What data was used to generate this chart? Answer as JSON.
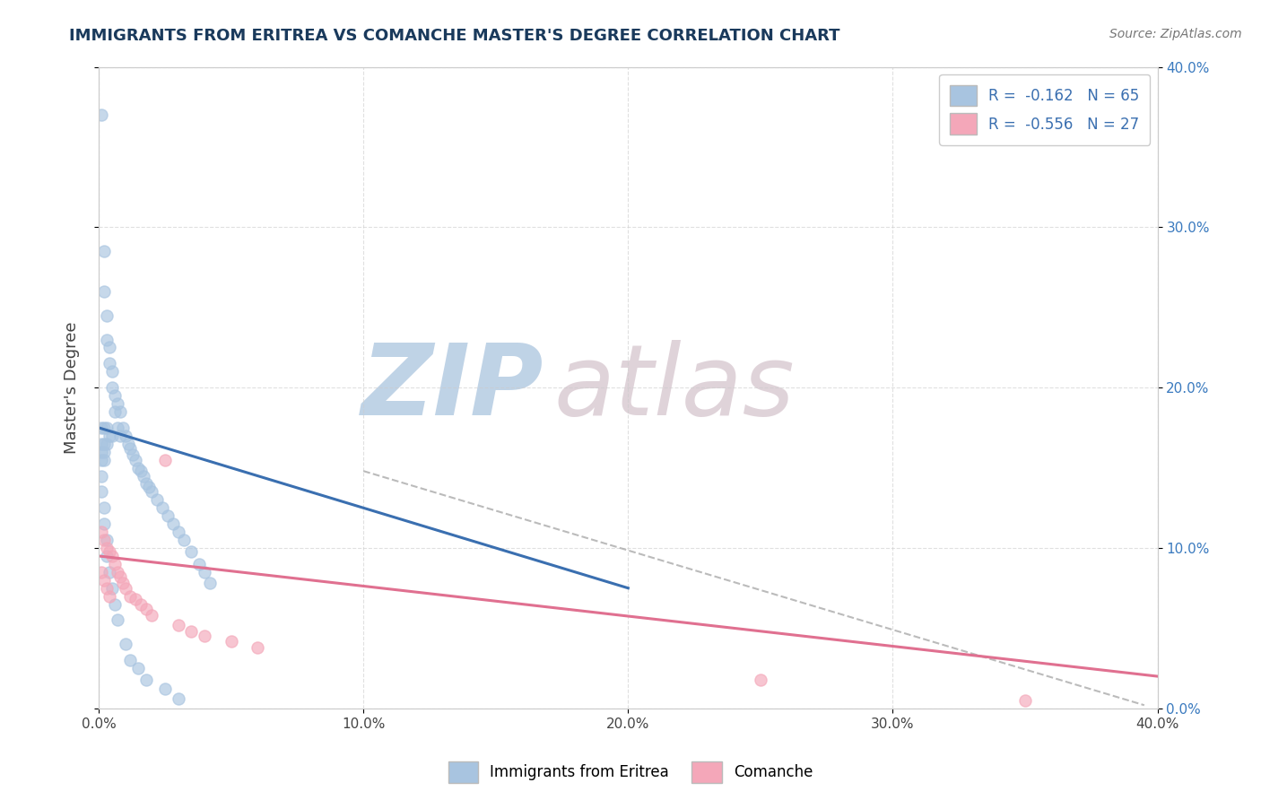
{
  "title": "IMMIGRANTS FROM ERITREA VS COMANCHE MASTER'S DEGREE CORRELATION CHART",
  "source_text": "Source: ZipAtlas.com",
  "ylabel": "Master's Degree",
  "xlim": [
    0.0,
    0.4
  ],
  "ylim": [
    0.0,
    0.4
  ],
  "xtick_labels": [
    "0.0%",
    "10.0%",
    "20.0%",
    "30.0%",
    "40.0%"
  ],
  "xtick_values": [
    0.0,
    0.1,
    0.2,
    0.3,
    0.4
  ],
  "right_ytick_labels": [
    "0.0%",
    "10.0%",
    "20.0%",
    "30.0%",
    "40.0%"
  ],
  "right_ytick_values": [
    0.0,
    0.1,
    0.2,
    0.3,
    0.4
  ],
  "blue_R": -0.162,
  "blue_N": 65,
  "pink_R": -0.556,
  "pink_N": 27,
  "blue_color": "#a8c4e0",
  "pink_color": "#f4a7b9",
  "blue_line_color": "#3a6fb0",
  "pink_line_color": "#e07090",
  "dashed_line_color": "#aaaaaa",
  "title_color": "#1a3a5c",
  "source_color": "#777777",
  "watermark_color": "#c8d8e8",
  "watermark_zip_color": "#b0c8e0",
  "watermark_atlas_color": "#d8c8d0",
  "watermark_text_zip": "ZIP",
  "watermark_text_atlas": "atlas",
  "legend_label_blue": "Immigrants from Eritrea",
  "legend_label_pink": "Comanche",
  "blue_scatter_x": [
    0.001,
    0.001,
    0.001,
    0.001,
    0.001,
    0.002,
    0.002,
    0.002,
    0.002,
    0.002,
    0.002,
    0.003,
    0.003,
    0.003,
    0.003,
    0.004,
    0.004,
    0.004,
    0.005,
    0.005,
    0.005,
    0.006,
    0.006,
    0.007,
    0.007,
    0.008,
    0.008,
    0.009,
    0.01,
    0.011,
    0.012,
    0.013,
    0.014,
    0.015,
    0.016,
    0.017,
    0.018,
    0.019,
    0.02,
    0.022,
    0.024,
    0.026,
    0.028,
    0.03,
    0.032,
    0.035,
    0.038,
    0.04,
    0.042,
    0.001,
    0.001,
    0.002,
    0.002,
    0.003,
    0.003,
    0.004,
    0.005,
    0.006,
    0.007,
    0.01,
    0.012,
    0.015,
    0.018,
    0.025,
    0.03
  ],
  "blue_scatter_y": [
    0.37,
    0.175,
    0.165,
    0.16,
    0.155,
    0.285,
    0.26,
    0.175,
    0.165,
    0.16,
    0.155,
    0.245,
    0.23,
    0.175,
    0.165,
    0.225,
    0.215,
    0.17,
    0.21,
    0.2,
    0.17,
    0.195,
    0.185,
    0.19,
    0.175,
    0.185,
    0.17,
    0.175,
    0.17,
    0.165,
    0.162,
    0.158,
    0.155,
    0.15,
    0.148,
    0.145,
    0.14,
    0.138,
    0.135,
    0.13,
    0.125,
    0.12,
    0.115,
    0.11,
    0.105,
    0.098,
    0.09,
    0.085,
    0.078,
    0.145,
    0.135,
    0.125,
    0.115,
    0.105,
    0.095,
    0.085,
    0.075,
    0.065,
    0.055,
    0.04,
    0.03,
    0.025,
    0.018,
    0.012,
    0.006
  ],
  "pink_scatter_x": [
    0.001,
    0.001,
    0.002,
    0.002,
    0.003,
    0.003,
    0.004,
    0.004,
    0.005,
    0.006,
    0.007,
    0.008,
    0.009,
    0.01,
    0.012,
    0.014,
    0.016,
    0.018,
    0.02,
    0.025,
    0.03,
    0.035,
    0.04,
    0.05,
    0.06,
    0.25,
    0.35
  ],
  "pink_scatter_y": [
    0.11,
    0.085,
    0.105,
    0.08,
    0.1,
    0.075,
    0.098,
    0.07,
    0.095,
    0.09,
    0.085,
    0.082,
    0.078,
    0.075,
    0.07,
    0.068,
    0.065,
    0.062,
    0.058,
    0.155,
    0.052,
    0.048,
    0.045,
    0.042,
    0.038,
    0.018,
    0.005
  ],
  "blue_line_x": [
    0.0,
    0.2
  ],
  "blue_line_y": [
    0.175,
    0.075
  ],
  "pink_line_x": [
    0.0,
    0.4
  ],
  "pink_line_y": [
    0.095,
    0.02
  ],
  "dashed_line_x": [
    0.1,
    0.395
  ],
  "dashed_line_y": [
    0.148,
    0.002
  ],
  "background_color": "#ffffff",
  "grid_color": "#cccccc"
}
